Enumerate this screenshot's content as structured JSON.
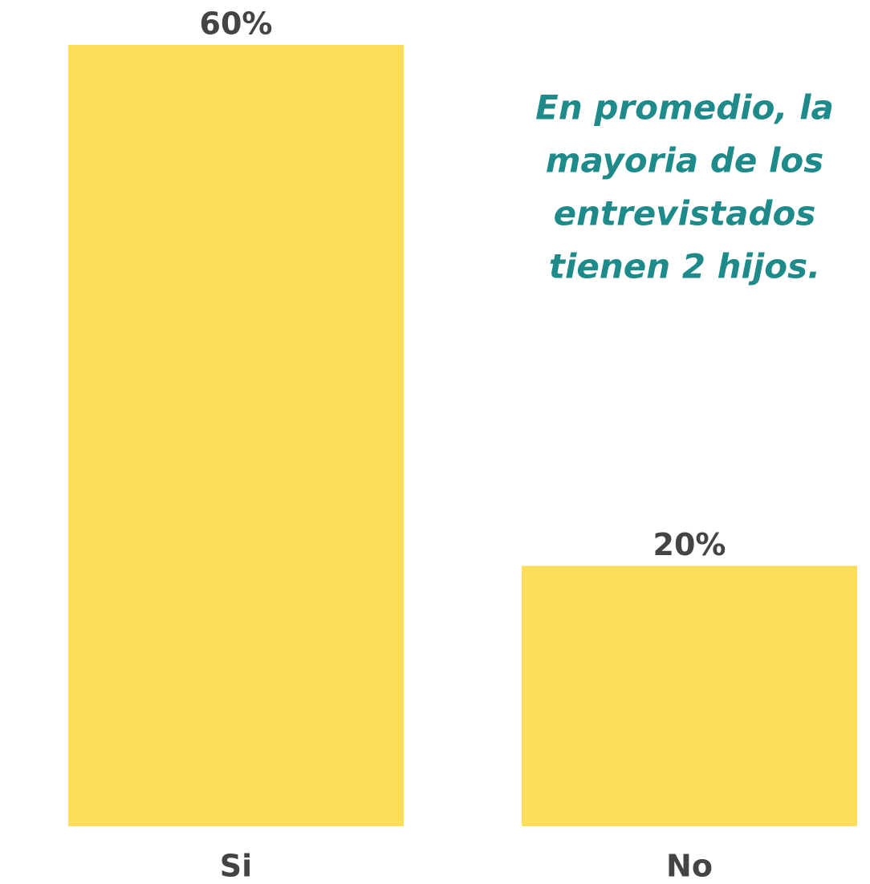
{
  "chart_data": {
    "type": "bar",
    "categories": [
      "Si",
      "No"
    ],
    "values": [
      60,
      20
    ],
    "value_labels": [
      "60%",
      "20%"
    ],
    "color": "#fedd5a",
    "ylim": [
      0,
      60
    ],
    "annotation": [
      "En promedio, la",
      "mayoria de los",
      "entrevistados",
      "tienen 2 hijos."
    ]
  }
}
